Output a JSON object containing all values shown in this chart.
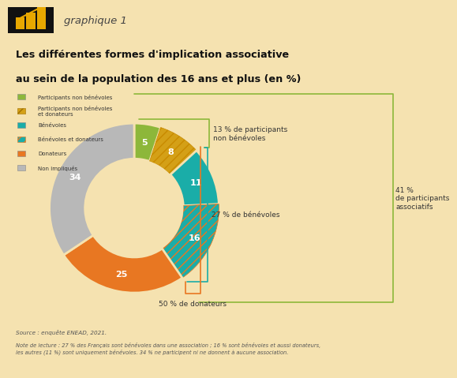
{
  "bg": "#f5e2b0",
  "title1": "Les différentes formes d'implication associative",
  "title2": "au sein de la population des 16 ans et plus (en %)",
  "header": "graphique 1",
  "sizes": [
    5,
    8,
    11,
    16,
    25,
    34
  ],
  "labels_in": [
    "5",
    "8",
    "11",
    "16",
    "25",
    "34"
  ],
  "colors": [
    "#8db73a",
    "#d4a017",
    "#1aada8",
    "#1aada8",
    "#e87722",
    "#b8b8b8"
  ],
  "hatch_1_color": "#c88a00",
  "hatch_3_color": "#e87722",
  "legend_items": [
    {
      "color": "#8db73a",
      "hatch": "",
      "label": "Participants non bénévoles"
    },
    {
      "color": "#d4a017",
      "hatch": "///",
      "label": "Participants non bénévoles\net donateurs"
    },
    {
      "color": "#1aada8",
      "hatch": "",
      "label": "Bénévoles"
    },
    {
      "color": "#1aada8",
      "hatch": "///",
      "label": "Bénévoles et donateurs"
    },
    {
      "color": "#e87722",
      "hatch": "",
      "label": "Donateurs"
    },
    {
      "color": "#b8b8b8",
      "hatch": "",
      "label": "Non impliqués"
    }
  ],
  "ann_13": "13 % de participants\nnon bénévoles",
  "ann_27": "27 % de bénévoles",
  "ann_41": "41 %\nde participants\nassociatifs",
  "ann_50": "50 % de donateurs",
  "source": "Source : enquête ENEAD, 2021.",
  "note": "Note de lecture : 27 % des Français sont bénévoles dans une association ; 16 % sont bénévoles et aussi donateurs,\nles autres (11 %) sont uniquement bénévoles. 34 % ne participent ni ne donnent à aucune association.",
  "green": "#8db73a",
  "teal": "#1aada8",
  "orange": "#e87722",
  "yellow": "#d4a017",
  "gray": "#b8b8b8",
  "start_angle": 90,
  "donut_width": 0.42,
  "inner_r": 0.58
}
